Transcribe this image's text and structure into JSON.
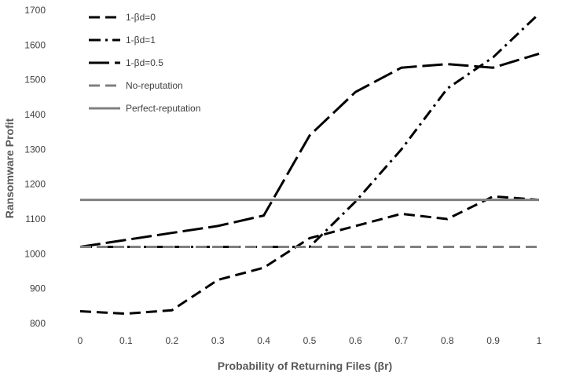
{
  "chart_data": {
    "type": "line",
    "xlabel": "Probability of Returning Files (βr)",
    "ylabel": "Ransomware Profit",
    "x": [
      0,
      0.1,
      0.2,
      0.3,
      0.4,
      0.5,
      0.6,
      0.7,
      0.8,
      0.9,
      1
    ],
    "x_tick_labels": [
      "0",
      "0.1",
      "0.2",
      "0.3",
      "0.4",
      "0.5",
      "0.6",
      "0.7",
      "0.8",
      "0.9",
      "1"
    ],
    "ylim": [
      800,
      1700
    ],
    "y_ticks": [
      800,
      900,
      1000,
      1100,
      1200,
      1300,
      1400,
      1500,
      1600,
      1700
    ],
    "grid": false,
    "legend_position": "top-left",
    "series": [
      {
        "name": "1-βd=0",
        "style": "dash",
        "color": "#000000",
        "values": [
          835,
          828,
          838,
          925,
          960,
          1045,
          1080,
          1115,
          1100,
          1165,
          1155
        ]
      },
      {
        "name": "1-βd=1",
        "style": "dash-dot",
        "color": "#000000",
        "values": [
          1020,
          1020,
          1020,
          1020,
          1020,
          1020,
          1150,
          1300,
          1475,
          1565,
          1690
        ]
      },
      {
        "name": "1-βd=0.5",
        "style": "long-dash",
        "color": "#000000",
        "values": [
          1020,
          1040,
          1060,
          1080,
          1110,
          1340,
          1465,
          1535,
          1545,
          1535,
          1575
        ]
      },
      {
        "name": "No-reputation",
        "style": "dash",
        "color": "#808080",
        "values": [
          1020,
          1020,
          1020,
          1020,
          1020,
          1020,
          1020,
          1020,
          1020,
          1020,
          1020
        ]
      },
      {
        "name": "Perfect-reputation",
        "style": "solid",
        "color": "#808080",
        "values": [
          1155,
          1155,
          1155,
          1155,
          1155,
          1155,
          1155,
          1155,
          1155,
          1155,
          1155
        ]
      }
    ]
  }
}
